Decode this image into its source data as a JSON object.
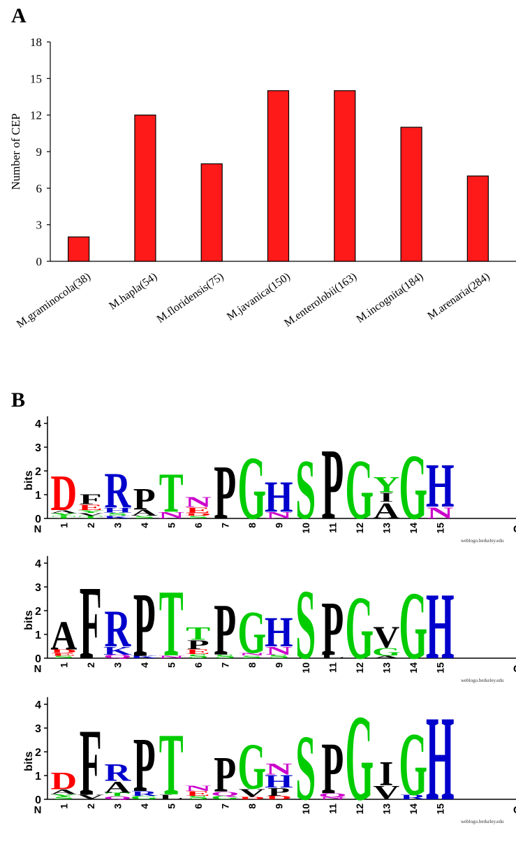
{
  "panels": {
    "a_letter": "A",
    "b_letter": "B"
  },
  "chart_data": [
    {
      "type": "bar",
      "categories": [
        "M.graminocola(38)",
        "M.hapla(54)",
        "M.floridensis(75)",
        "M.javanica(150)",
        "M.enterolobii(163)",
        "M.incognita(184)",
        "M.arenaria(284)"
      ],
      "values": [
        2,
        12,
        8,
        14,
        14,
        11,
        7
      ],
      "ylabel": "Number of CEP",
      "ylim": [
        0,
        18
      ],
      "yticks": [
        0,
        3,
        6,
        9,
        12,
        15,
        18
      ],
      "bar_color": "#ff1a1a",
      "grid": false
    },
    {
      "type": "sequence-logo",
      "ylabel": "bits",
      "yticks": [
        0,
        1,
        2,
        3,
        4
      ],
      "ylim": [
        0,
        4.3
      ],
      "n_label": "N",
      "c_label": "C",
      "credit": "weblogo.berkeley.edu",
      "colors": {
        "D": "#ff0000",
        "E": "#ff0000",
        "K": "#0000cc",
        "R": "#0000cc",
        "H": "#0000cc",
        "N": "#cc00cc",
        "Q": "#cc00cc",
        "S": "#00cc00",
        "T": "#00cc00",
        "G": "#00cc00",
        "Y": "#00cc00",
        "C": "#00cc00",
        "A": "#000000",
        "P": "#000000",
        "F": "#000000",
        "V": "#000000",
        "I": "#000000",
        "L": "#000000",
        "M": "#000000",
        "W": "#000000"
      },
      "logos": [
        {
          "positions": [
            [
              [
                "T",
                0.12
              ],
              [
                "Y",
                0.1
              ],
              [
                "A",
                0.13
              ],
              [
                "D",
                1.55
              ]
            ],
            [
              [
                "T",
                0.1
              ],
              [
                "V",
                0.13
              ],
              [
                "Y",
                0.12
              ],
              [
                "E",
                0.25
              ],
              [
                "F",
                0.45
              ]
            ],
            [
              [
                "K",
                0.12
              ],
              [
                "S",
                0.13
              ],
              [
                "H",
                0.2
              ],
              [
                "R",
                1.55
              ]
            ],
            [
              [
                "S",
                0.12
              ],
              [
                "A",
                0.26
              ],
              [
                "P",
                0.95
              ]
            ],
            [
              [
                "N",
                0.3
              ],
              [
                "T",
                1.7
              ]
            ],
            [
              [
                "S",
                0.12
              ],
              [
                "D",
                0.12
              ],
              [
                "E",
                0.25
              ],
              [
                "N",
                0.45
              ]
            ],
            [
              [
                "P",
                2.35
              ]
            ],
            [
              [
                "G",
                2.75
              ]
            ],
            [
              [
                "N",
                0.3
              ],
              [
                "H",
                1.35
              ]
            ],
            [
              [
                "S",
                2.6
              ]
            ],
            [
              [
                "P",
                3.1
              ]
            ],
            [
              [
                "G",
                2.6
              ]
            ],
            [
              [
                "A",
                0.7
              ],
              [
                "I",
                0.4
              ],
              [
                "Y",
                0.7
              ]
            ],
            [
              [
                "G",
                2.85
              ]
            ],
            [
              [
                "N",
                0.5
              ],
              [
                "H",
                1.9
              ]
            ]
          ]
        },
        {
          "positions": [
            [
              [
                "S",
                0.1
              ],
              [
                "E",
                0.12
              ],
              [
                "D",
                0.15
              ],
              [
                "A",
                1.25
              ]
            ],
            [
              [
                "F",
                3.2
              ]
            ],
            [
              [
                "Q",
                0.15
              ],
              [
                "K",
                0.35
              ],
              [
                "R",
                1.6
              ]
            ],
            [
              [
                "K",
                0.1
              ],
              [
                "P",
                2.8
              ]
            ],
            [
              [
                "N",
                0.12
              ],
              [
                "T",
                2.9
              ]
            ],
            [
              [
                "S",
                0.18
              ],
              [
                "E",
                0.2
              ],
              [
                "P",
                0.4
              ],
              [
                "T",
                0.55
              ]
            ],
            [
              [
                "S",
                0.15
              ],
              [
                "P",
                2.25
              ]
            ],
            [
              [
                "S",
                0.12
              ],
              [
                "N",
                0.12
              ],
              [
                "G",
                1.85
              ]
            ],
            [
              [
                "S",
                0.15
              ],
              [
                "N",
                0.35
              ],
              [
                "H",
                1.3
              ]
            ],
            [
              [
                "S",
                3.05
              ]
            ],
            [
              [
                "L",
                0.15
              ],
              [
                "P",
                2.35
              ]
            ],
            [
              [
                "G",
                2.75
              ]
            ],
            [
              [
                "A",
                0.1
              ],
              [
                "G",
                0.35
              ],
              [
                "V",
                0.95
              ]
            ],
            [
              [
                "G",
                2.95
              ]
            ],
            [
              [
                "H",
                2.9
              ]
            ]
          ]
        },
        {
          "positions": [
            [
              [
                "S",
                0.1
              ],
              [
                "Y",
                0.12
              ],
              [
                "A",
                0.2
              ],
              [
                "D",
                0.75
              ]
            ],
            [
              [
                "V",
                0.2
              ],
              [
                "F",
                2.9
              ]
            ],
            [
              [
                "Q",
                0.13
              ],
              [
                "T",
                0.15
              ],
              [
                "A",
                0.5
              ],
              [
                "R",
                0.75
              ]
            ],
            [
              [
                "G",
                0.15
              ],
              [
                "R",
                0.2
              ],
              [
                "P",
                2.35
              ]
            ],
            [
              [
                "L",
                0.2
              ],
              [
                "T",
                2.7
              ]
            ],
            [
              [
                "S",
                0.15
              ],
              [
                "E",
                0.2
              ],
              [
                "N",
                0.25
              ]
            ],
            [
              [
                "G",
                0.15
              ],
              [
                "Q",
                0.18
              ],
              [
                "P",
                1.55
              ]
            ],
            [
              [
                "D",
                0.1
              ],
              [
                "V",
                0.35
              ],
              [
                "G",
                2.0
              ]
            ],
            [
              [
                "D",
                0.15
              ],
              [
                "P",
                0.35
              ],
              [
                "H",
                0.55
              ],
              [
                "N",
                0.5
              ]
            ],
            [
              [
                "S",
                2.85
              ]
            ],
            [
              [
                "N",
                0.1
              ],
              [
                "Q",
                0.15
              ],
              [
                "P",
                2.25
              ]
            ],
            [
              [
                "G",
                3.75
              ]
            ],
            [
              [
                "V",
                0.6
              ],
              [
                "I",
                1.05
              ]
            ],
            [
              [
                "R",
                0.2
              ],
              [
                "G",
                2.75
              ]
            ],
            [
              [
                "H",
                3.7
              ]
            ]
          ]
        }
      ]
    }
  ]
}
